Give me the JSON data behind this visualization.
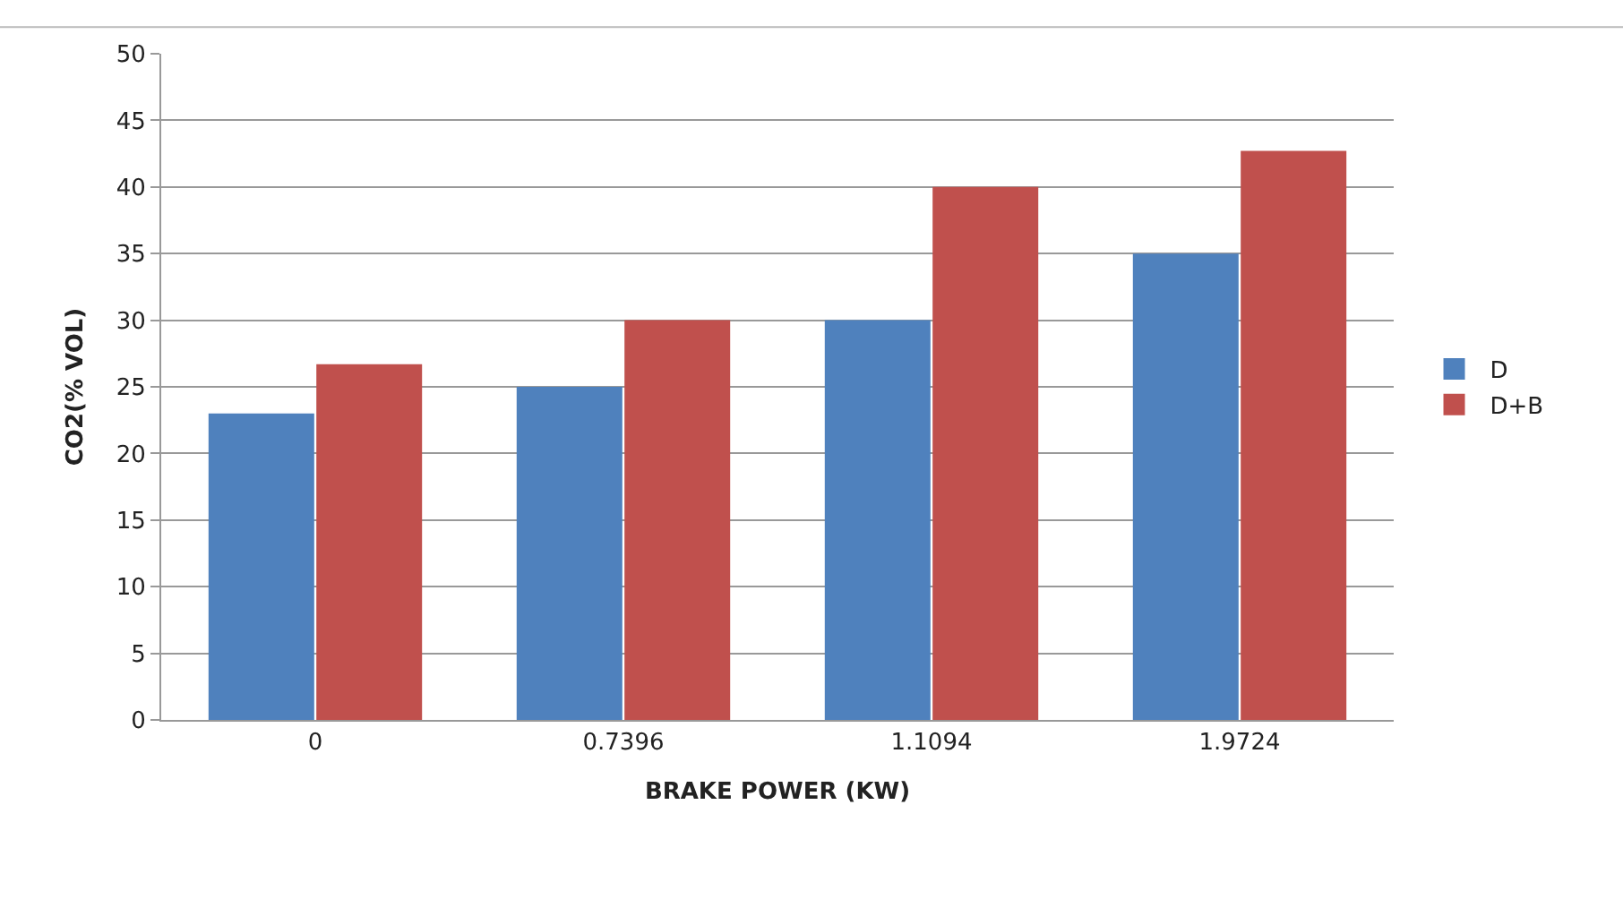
{
  "chart_data": {
    "type": "bar",
    "xlabel": "BRAKE POWER (KW)",
    "ylabel": "CO2(% VOL)",
    "categories": [
      "0",
      "0.7396",
      "1.1094",
      "1.9724"
    ],
    "series": [
      {
        "name": "D",
        "color": "#4f81bd",
        "values": [
          23,
          25,
          30,
          35
        ]
      },
      {
        "name": "D+B",
        "color": "#c0504d",
        "values": [
          26.7,
          30,
          40,
          42.7
        ]
      }
    ],
    "ylim": [
      0,
      50
    ],
    "yticks": [
      0,
      5,
      10,
      15,
      20,
      25,
      30,
      35,
      40,
      45,
      50
    ],
    "grid": "y",
    "legend": "right"
  }
}
